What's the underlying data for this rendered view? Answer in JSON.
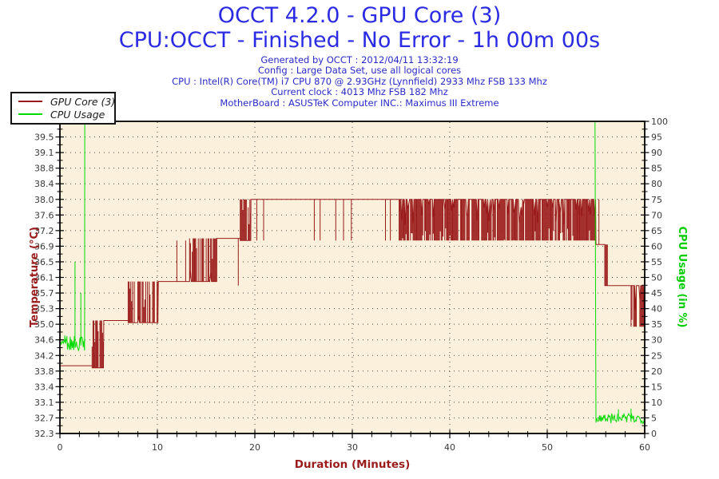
{
  "header": {
    "info_lines": [
      "Generated by OCCT : 2012/04/11 13:32:19",
      "Config : Large Data Set, use all logical cores",
      "CPU : Intel(R) Core(TM) i7 CPU 870 @ 2.93GHz (Lynnfield) 2933 Mhz FSB 133 Mhz",
      "Current clock : 4013 Mhz FSB 182 Mhz",
      "MotherBoard : ASUSTeK Computer INC.: Maximus III Extreme"
    ]
  },
  "colors": {
    "title_blue": "#2b2be4",
    "info_blue": "#2a2ac8",
    "plot_bg": "#faf0dc",
    "grid": "#4a4a4a",
    "axis_line": "#000000",
    "tick_label": "#3a3a3a",
    "temperature_red": "#9a1b1b",
    "cpu_green": "#00dc00"
  },
  "chart_data": {
    "type": "line",
    "title": "OCCT 4.2.0 - GPU Core (3)",
    "subtitle": "CPU:OCCT - Finished - No Error - 1h 00m 00s",
    "xlabel": "Duration (Minutes)",
    "ylabel_left": "Temperature (°C)",
    "ylabel_right": "CPU Usage (in %)",
    "x_range": [
      0,
      60
    ],
    "x_major_ticks": [
      "0",
      "10",
      "20",
      "30",
      "40",
      "50",
      "60"
    ],
    "x_minor_step_minutes": 2,
    "grid_vertical_lines_minutes": [
      10,
      20,
      30,
      40,
      50
    ],
    "y_left": {
      "range": [
        32.3,
        39.9
      ],
      "tick_labels": [
        "39.9",
        "39.5",
        "39.1",
        "38.8",
        "38.4",
        "38.0",
        "37.6",
        "37.2",
        "36.9",
        "36.5",
        "36.1",
        "35.7",
        "35.3",
        "35.0",
        "34.6",
        "34.2",
        "33.8",
        "33.4",
        "33.1",
        "32.7",
        "32.3"
      ]
    },
    "y_right": {
      "range": [
        0,
        100
      ],
      "tick_labels": [
        "100",
        "95",
        "90",
        "85",
        "80",
        "75",
        "70",
        "65",
        "60",
        "55",
        "50",
        "45",
        "40",
        "35",
        "30",
        "25",
        "20",
        "15",
        "10",
        "5",
        "0"
      ]
    },
    "legend_position": "top-left",
    "series": [
      {
        "name": "GPU Core (3)",
        "axis": "left",
        "unit": "°C",
        "color": "#9a1b1b",
        "segments": [
          {
            "kind": "flat",
            "t": [
              0,
              3.3
            ],
            "v": 33.95
          },
          {
            "kind": "burst",
            "t": [
              3.3,
              4.5
            ],
            "lo": 33.9,
            "hi": 35.05,
            "density": 0.7,
            "anchor": "bottom"
          },
          {
            "kind": "flat",
            "t": [
              4.5,
              7.0
            ],
            "v": 35.05
          },
          {
            "kind": "burst",
            "t": [
              7.0,
              10.1
            ],
            "lo": 35.0,
            "hi": 36.0,
            "density": 0.78,
            "anchor": "bottom"
          },
          {
            "kind": "flat",
            "t": [
              10.1,
              13.3
            ],
            "v": 36.0,
            "spikes": [
              {
                "t": 12.0,
                "v": 37.0
              },
              {
                "t": 12.9,
                "v": 37.0
              }
            ]
          },
          {
            "kind": "burst",
            "t": [
              13.3,
              16.1
            ],
            "lo": 36.0,
            "hi": 37.05,
            "density": 0.8,
            "anchor": "bottom"
          },
          {
            "kind": "flat",
            "t": [
              16.1,
              18.5
            ],
            "v": 37.05,
            "spikes": [
              {
                "t": 18.3,
                "v": 35.9
              }
            ]
          },
          {
            "kind": "burst",
            "t": [
              18.5,
              19.6
            ],
            "lo": 37.0,
            "hi": 38.0,
            "density": 0.85,
            "anchor": "bottom"
          },
          {
            "kind": "flat",
            "t": [
              19.6,
              34.8
            ],
            "v": 38.0,
            "spikes": [
              {
                "t": 20.2,
                "v": 37.0
              },
              {
                "t": 20.9,
                "v": 37.0
              },
              {
                "t": 26.1,
                "v": 37.0
              },
              {
                "t": 26.7,
                "v": 37.0
              },
              {
                "t": 28.3,
                "v": 37.0
              },
              {
                "t": 29.1,
                "v": 37.0
              },
              {
                "t": 29.9,
                "v": 37.0
              },
              {
                "t": 33.4,
                "v": 37.0
              },
              {
                "t": 33.9,
                "v": 37.0
              }
            ]
          },
          {
            "kind": "burst",
            "t": [
              34.8,
              55.0
            ],
            "lo": 37.0,
            "hi": 38.0,
            "density": 0.9,
            "anchor": "top"
          },
          {
            "kind": "flat",
            "t": [
              55.0,
              55.9
            ],
            "v": 36.9,
            "spikes": [
              {
                "t": 55.3,
                "v": 38.0
              }
            ]
          },
          {
            "kind": "burst",
            "t": [
              55.9,
              56.3
            ],
            "lo": 35.9,
            "hi": 36.9,
            "density": 0.55,
            "anchor": "bottom"
          },
          {
            "kind": "flat",
            "t": [
              56.3,
              58.6
            ],
            "v": 35.9
          },
          {
            "kind": "burst",
            "t": [
              58.6,
              60
            ],
            "lo": 34.9,
            "hi": 35.9,
            "density": 0.75,
            "anchor": "top"
          }
        ]
      },
      {
        "name": "CPU Usage",
        "axis": "right",
        "unit": "%",
        "color": "#00dc00",
        "segments": [
          {
            "kind": "noisy",
            "t": [
              0,
              0.5
            ],
            "lo": 28.5,
            "hi": 30.5
          },
          {
            "kind": "noisy",
            "t": [
              0.5,
              2.55
            ],
            "lo": 26.5,
            "hi": 31.5,
            "spikes": [
              {
                "t": 1.55,
                "v": 55
              },
              {
                "t": 2.15,
                "v": 45
              }
            ]
          },
          {
            "kind": "flat",
            "t": [
              2.55,
              54.9
            ],
            "v": 100
          },
          {
            "kind": "noisy",
            "t": [
              55.0,
              60
            ],
            "lo": 3.2,
            "hi": 6.5,
            "spikes": [
              {
                "t": 57.3,
                "v": 7.8
              },
              {
                "t": 58.6,
                "v": 8.0
              }
            ]
          }
        ]
      }
    ]
  }
}
